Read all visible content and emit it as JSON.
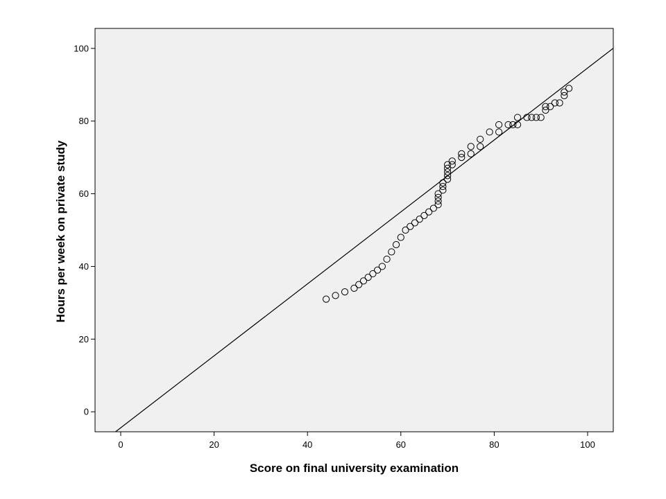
{
  "chart_data": {
    "type": "scatter",
    "xlabel": "Score on final university examination",
    "ylabel": "Hours per week on private study",
    "xlim": [
      -5.5,
      105.5
    ],
    "ylim": [
      -5.5,
      105.5
    ],
    "xticks": [
      0,
      20,
      40,
      60,
      80,
      100
    ],
    "yticks": [
      0,
      20,
      40,
      60,
      80,
      100
    ],
    "grid": false,
    "legend": "none",
    "background_color": "#f0f0f0",
    "marker_color": "#000000",
    "line_color": "#000000",
    "reference_line": {
      "slope": 0.99,
      "intercept": -4.4
    },
    "points": [
      [
        44,
        31
      ],
      [
        46,
        32
      ],
      [
        48,
        33
      ],
      [
        50,
        34
      ],
      [
        51,
        35
      ],
      [
        52,
        36
      ],
      [
        53,
        37
      ],
      [
        54,
        38
      ],
      [
        55,
        39
      ],
      [
        56,
        40
      ],
      [
        57,
        42
      ],
      [
        58,
        44
      ],
      [
        59,
        46
      ],
      [
        60,
        48
      ],
      [
        61,
        50
      ],
      [
        62,
        51
      ],
      [
        63,
        52
      ],
      [
        64,
        53
      ],
      [
        65,
        54
      ],
      [
        66,
        55
      ],
      [
        67,
        56
      ],
      [
        68,
        57
      ],
      [
        68,
        58
      ],
      [
        68,
        59
      ],
      [
        68,
        60
      ],
      [
        69,
        61
      ],
      [
        69,
        62
      ],
      [
        69,
        63
      ],
      [
        70,
        64
      ],
      [
        70,
        65
      ],
      [
        70,
        66
      ],
      [
        70,
        67
      ],
      [
        70,
        68
      ],
      [
        71,
        68
      ],
      [
        71,
        69
      ],
      [
        73,
        70
      ],
      [
        73,
        71
      ],
      [
        75,
        71
      ],
      [
        75,
        73
      ],
      [
        77,
        73
      ],
      [
        77,
        75
      ],
      [
        79,
        77
      ],
      [
        81,
        77
      ],
      [
        81,
        79
      ],
      [
        83,
        79
      ],
      [
        84,
        79
      ],
      [
        85,
        79
      ],
      [
        85,
        81
      ],
      [
        87,
        81
      ],
      [
        88,
        81
      ],
      [
        89,
        81
      ],
      [
        90,
        81
      ],
      [
        91,
        83
      ],
      [
        91,
        84
      ],
      [
        92,
        84
      ],
      [
        93,
        85
      ],
      [
        94,
        85
      ],
      [
        95,
        87
      ],
      [
        95,
        88
      ],
      [
        96,
        89
      ]
    ]
  }
}
